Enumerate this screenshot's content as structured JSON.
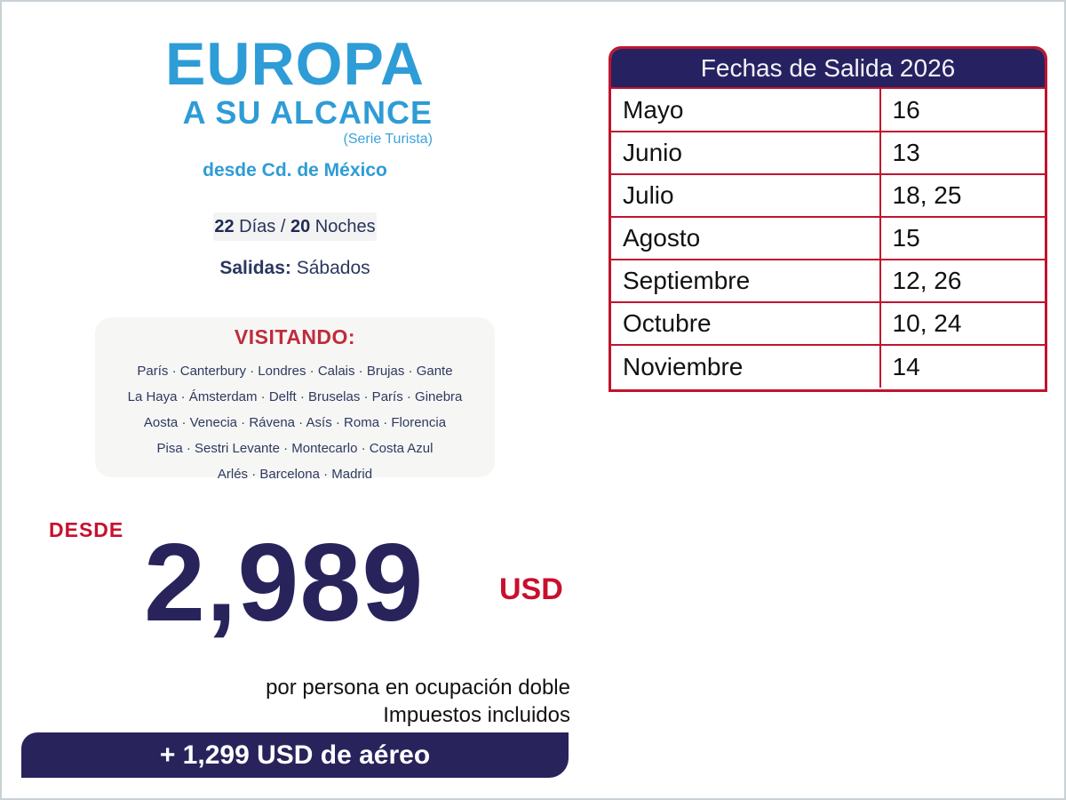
{
  "brand": {
    "title": "EUROPA",
    "subtitle": "A SU ALCANCE",
    "series": "(Serie Turista)",
    "origin": "desde Cd. de México"
  },
  "duration": {
    "days_value": "22",
    "days_label": " Días / ",
    "nights_value": "20",
    "nights_label": " Noches"
  },
  "departures_line": {
    "label": "Salidas:",
    "value": " Sábados"
  },
  "visiting": {
    "title": "VISITANDO:",
    "lines": [
      "París · Canterbury · Londres · Calais · Brujas · Gante",
      "La Haya · Ámsterdam · Delft · Bruselas · París · Ginebra",
      "Aosta · Venecia · Rávena · Asís · Roma · Florencia",
      "Pisa · Sestri Levante · Montecarlo · Costa Azul",
      "Arlés · Barcelona · Madrid"
    ]
  },
  "pricing": {
    "from_label": "DESDE",
    "amount": "2,989",
    "currency": "USD",
    "note_line1": "por persona en ocupación doble",
    "note_line2": "Impuestos incluidos",
    "air_banner": "+ 1,299 USD de aéreo"
  },
  "departure_table": {
    "header": "Fechas de Salida 2026",
    "rows": [
      {
        "month": "Mayo",
        "dates": "16"
      },
      {
        "month": "Junio",
        "dates": "13"
      },
      {
        "month": "Julio",
        "dates": "18, 25"
      },
      {
        "month": "Agosto",
        "dates": "15"
      },
      {
        "month": "Septiembre",
        "dates": "12, 26"
      },
      {
        "month": "Octubre",
        "dates": "10, 24"
      },
      {
        "month": "Noviembre",
        "dates": "14"
      }
    ]
  },
  "colors": {
    "brand_blue": "#2e9cd6",
    "navy": "#29235c",
    "table_header_navy": "#262262",
    "crimson": "#c8102e",
    "table_border_red": "#c0142d",
    "badge_gray": "#f3f3f3",
    "box_gray": "#f6f6f5",
    "page_border_gray": "#c7d1d6"
  }
}
